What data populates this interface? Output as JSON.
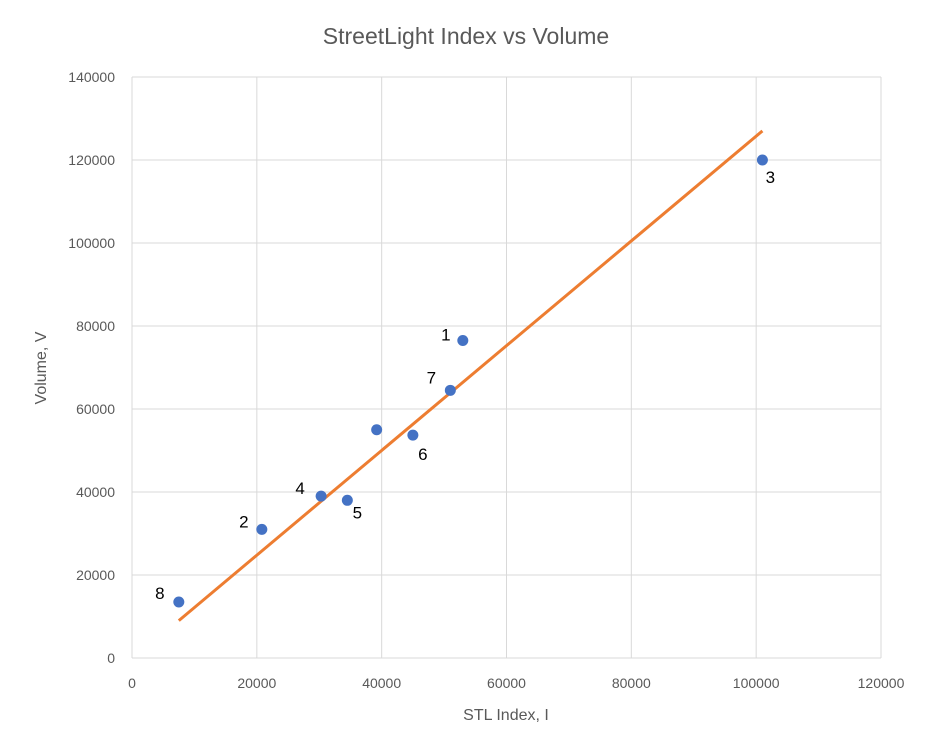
{
  "chart_data": {
    "type": "scatter",
    "title": "StreetLight Index vs Volume",
    "xlabel": "STL Index, I",
    "ylabel": "Volume, V",
    "xlim": [
      0,
      120000
    ],
    "ylim": [
      0,
      140000
    ],
    "x_ticks": [
      "0",
      "20000",
      "40000",
      "60000",
      "80000",
      "100000",
      "120000"
    ],
    "y_ticks": [
      "0",
      "20000",
      "40000",
      "60000",
      "80000",
      "100000",
      "120000",
      "140000"
    ],
    "grid": true,
    "legend": "none",
    "marker_color": "#4472C4",
    "trendline_color": "#ED7D31",
    "points": [
      {
        "label": "1",
        "x": 53000,
        "y": 76500
      },
      {
        "label": "2",
        "x": 20800,
        "y": 31000
      },
      {
        "label": "3",
        "x": 101000,
        "y": 120000
      },
      {
        "label": "4",
        "x": 30300,
        "y": 39000
      },
      {
        "label": "5",
        "x": 34500,
        "y": 38000
      },
      {
        "label": "6",
        "x": 45000,
        "y": 53700
      },
      {
        "label": "7",
        "x": 51000,
        "y": 64500
      },
      {
        "label": "",
        "x": 39200,
        "y": 55000
      },
      {
        "label": "8",
        "x": 7500,
        "y": 13500
      }
    ],
    "trendline": {
      "x": [
        7500,
        101000
      ],
      "y": [
        9000,
        127000
      ]
    }
  }
}
